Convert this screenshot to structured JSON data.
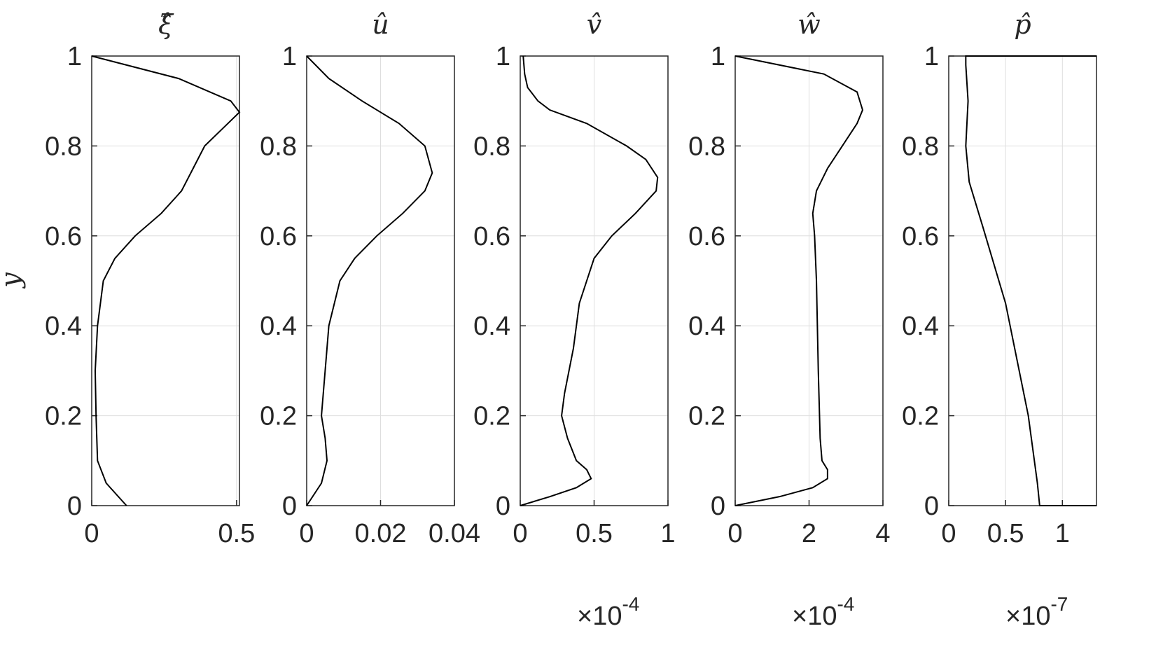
{
  "chart_data": [
    {
      "type": "line",
      "title": "ξ̂",
      "ylabel": "y",
      "color": "#000000",
      "grid": true,
      "x": [
        0.12,
        0.05,
        0.02,
        0.015,
        0.012,
        0.02,
        0.04,
        0.08,
        0.15,
        0.24,
        0.31,
        0.35,
        0.39,
        0.47,
        0.51,
        0.48,
        0.3,
        0
      ],
      "y": [
        0,
        0.05,
        0.1,
        0.2,
        0.3,
        0.4,
        0.5,
        0.55,
        0.6,
        0.65,
        0.7,
        0.75,
        0.8,
        0.85,
        0.875,
        0.9,
        0.95,
        1
      ],
      "xlim": [
        0,
        0.51
      ],
      "xticks": [
        0,
        0.5
      ],
      "ylim": [
        0,
        1
      ],
      "yticks": [
        0,
        0.2,
        0.4,
        0.6,
        0.8,
        1
      ]
    },
    {
      "type": "line",
      "title": "û",
      "color": "#000000",
      "grid": true,
      "x": [
        0,
        0.004,
        0.0055,
        0.005,
        0.004,
        0.005,
        0.006,
        0.009,
        0.013,
        0.019,
        0.026,
        0.032,
        0.034,
        0.032,
        0.025,
        0.015,
        0.006,
        0
      ],
      "y": [
        0,
        0.05,
        0.1,
        0.15,
        0.2,
        0.3,
        0.4,
        0.5,
        0.55,
        0.6,
        0.65,
        0.7,
        0.74,
        0.8,
        0.85,
        0.9,
        0.95,
        1
      ],
      "xlim": [
        0,
        0.04
      ],
      "xticks": [
        0,
        0.02,
        0.04
      ],
      "ylim": [
        0,
        1
      ],
      "yticks": [
        0,
        0.2,
        0.4,
        0.6,
        0.8,
        1
      ]
    },
    {
      "type": "line",
      "title": "v̂",
      "color": "#000000",
      "grid": true,
      "x_exponent": {
        "base": "×10",
        "power": "-4"
      },
      "x": [
        0,
        0.2,
        0.38,
        0.48,
        0.45,
        0.38,
        0.32,
        0.28,
        0.3,
        0.33,
        0.36,
        0.38,
        0.4,
        0.45,
        0.5,
        0.62,
        0.78,
        0.92,
        0.93,
        0.85,
        0.72,
        0.45,
        0.2,
        0.12,
        0.05,
        0.03,
        0.02
      ],
      "y": [
        0,
        0.02,
        0.04,
        0.06,
        0.08,
        0.1,
        0.15,
        0.2,
        0.25,
        0.3,
        0.35,
        0.4,
        0.45,
        0.5,
        0.55,
        0.6,
        0.65,
        0.7,
        0.73,
        0.77,
        0.8,
        0.85,
        0.88,
        0.9,
        0.93,
        0.96,
        1
      ],
      "xlim": [
        0,
        1
      ],
      "xticks": [
        0,
        0.5,
        1
      ],
      "ylim": [
        0,
        1
      ],
      "yticks": [
        0,
        0.2,
        0.4,
        0.6,
        0.8,
        1
      ]
    },
    {
      "type": "line",
      "title": "ŵ",
      "color": "#000000",
      "grid": true,
      "x_exponent": {
        "base": "×10",
        "power": "-4"
      },
      "x": [
        0,
        1.2,
        2.1,
        2.5,
        2.5,
        2.35,
        2.3,
        2.25,
        2.2,
        2.15,
        2.1,
        2.2,
        2.5,
        2.9,
        3.3,
        3.45,
        3.3,
        2.4,
        0
      ],
      "y": [
        0,
        0.02,
        0.04,
        0.06,
        0.08,
        0.1,
        0.15,
        0.3,
        0.5,
        0.6,
        0.65,
        0.7,
        0.75,
        0.8,
        0.85,
        0.88,
        0.92,
        0.96,
        1
      ],
      "xlim": [
        0,
        4
      ],
      "xticks": [
        0,
        2,
        4
      ],
      "ylim": [
        0,
        1
      ],
      "yticks": [
        0,
        0.2,
        0.4,
        0.6,
        0.8,
        1
      ]
    },
    {
      "type": "line",
      "title": "p̂",
      "color": "#000000",
      "grid": true,
      "x_exponent": {
        "base": "×10",
        "power": "-7"
      },
      "x": [
        1.3,
        0.8,
        0.78,
        0.7,
        0.5,
        0.3,
        0.18,
        0.15,
        0.17,
        0.15,
        0.15,
        1.3
      ],
      "y": [
        0,
        0,
        0.05,
        0.2,
        0.45,
        0.62,
        0.72,
        0.8,
        0.9,
        0.98,
        1,
        1
      ],
      "xlim": [
        0,
        1.3
      ],
      "xticks": [
        0,
        0.5,
        1
      ],
      "ylim": [
        0,
        1
      ],
      "yticks": [
        0,
        0.2,
        0.4,
        0.6,
        0.8,
        1
      ]
    }
  ]
}
